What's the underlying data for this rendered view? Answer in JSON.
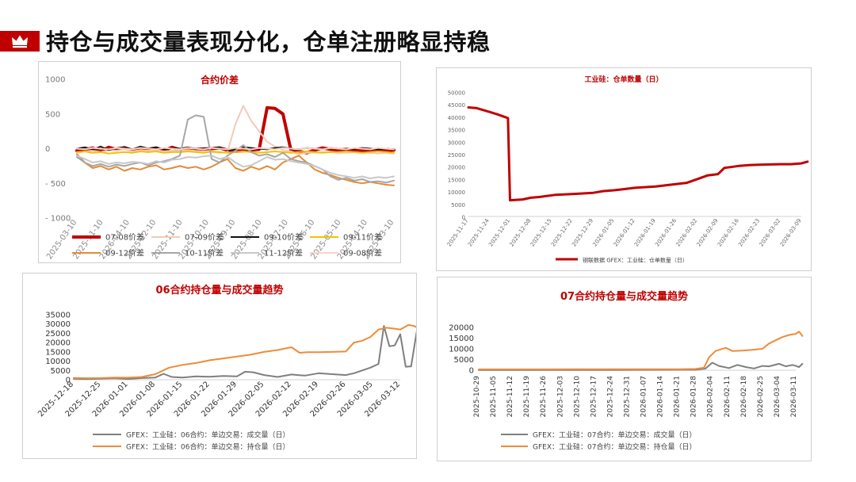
{
  "page": {
    "title": "持仓与成交量表现分化，仓单注册略显持稳",
    "accent_color": "#c00000",
    "icon": "crown-icon"
  },
  "chart_data": [
    {
      "type": "line",
      "title": "合约价差",
      "xlabel": "",
      "ylabel": "",
      "ylim": [
        -1000,
        1000
      ],
      "y_ticks": [
        "1000",
        "500",
        "0",
        "- 500",
        "- 1000"
      ],
      "x_tick_labels": [
        "2025-03-10",
        "2025-11-10",
        "2026-04-10",
        "2025-12-10",
        "2025-11-10",
        "2025-10-10",
        "2025-09-10",
        "2025-08-10",
        "2025-07-10",
        "2025-06-10",
        "2025-05-10",
        "2025-04-10",
        "2025-03-10"
      ],
      "legend_position": "bottom",
      "series": [
        {
          "name": "07-08价差",
          "color": "#c00000",
          "width": 4,
          "values": [
            -30,
            -20,
            10,
            -40,
            20,
            -10,
            15,
            -25,
            5,
            -10,
            10,
            -30,
            20,
            -15,
            5,
            -10,
            -5,
            0,
            10,
            -20,
            -40,
            -30,
            -20,
            -10,
            590,
            580,
            500,
            -20,
            -40,
            -60,
            -20,
            10,
            -10,
            -20,
            -10,
            -20,
            -30,
            -25,
            -20,
            -30,
            -20
          ]
        },
        {
          "name": "07-09价差",
          "color": "#f1cbb8",
          "width": 2,
          "values": [
            -60,
            -40,
            -30,
            -50,
            -20,
            -30,
            -10,
            -40,
            -20,
            -30,
            -20,
            -40,
            -30,
            -30,
            -20,
            -30,
            -40,
            -50,
            -60,
            -50,
            350,
            620,
            400,
            250,
            100,
            30,
            -20,
            -40,
            -80,
            -60,
            -60,
            -50,
            -50,
            -60,
            -60,
            -50,
            -60,
            -60,
            -70,
            -60,
            -70
          ]
        },
        {
          "name": "09-10价差",
          "color": "#111111",
          "width": 2,
          "values": [
            0,
            20,
            -10,
            30,
            -20,
            10,
            20,
            -10,
            30,
            0,
            20,
            -10,
            10,
            0,
            20,
            -10,
            0,
            10,
            20,
            -20,
            -10,
            20,
            10,
            0,
            -10,
            10,
            20,
            0,
            -10,
            10,
            0,
            -10,
            10,
            0,
            -10,
            0,
            10,
            0,
            -10,
            0,
            -10
          ]
        },
        {
          "name": "09-11价差",
          "color": "#f2c200",
          "width": 2,
          "values": [
            -50,
            -40,
            -60,
            -50,
            -70,
            -60,
            -50,
            -60,
            -40,
            -50,
            -40,
            -60,
            -50,
            -50,
            -40,
            -50,
            -60,
            -40,
            -50,
            -60,
            -50,
            -40,
            -50,
            -60,
            -50,
            -40,
            -50,
            -60,
            -50,
            -40,
            -50,
            -60,
            -50,
            -50,
            -40,
            -50,
            -60,
            -50,
            -40,
            -50,
            -60
          ]
        },
        {
          "name": "09-12价差",
          "color": "#e58a3a",
          "width": 2,
          "values": [
            -80,
            -200,
            -280,
            -250,
            -300,
            -260,
            -320,
            -280,
            -300,
            -260,
            -240,
            -300,
            -280,
            -250,
            -280,
            -260,
            -300,
            -260,
            -200,
            -150,
            -280,
            -320,
            -260,
            -300,
            -250,
            -300,
            -200,
            -150,
            -100,
            -200,
            -300,
            -350,
            -380,
            -420,
            -450,
            -480,
            -500,
            -480,
            -500,
            -520,
            -530
          ]
        },
        {
          "name": "10-11价差",
          "color": "#a6a6a6",
          "width": 2,
          "values": [
            -120,
            -200,
            -250,
            -220,
            -260,
            -230,
            -250,
            -220,
            -200,
            -240,
            -200,
            -180,
            -150,
            -100,
            420,
            480,
            460,
            -150,
            -200,
            -100,
            -30,
            50,
            -50,
            -100,
            -80,
            -120,
            -60,
            -150,
            -180,
            -200,
            -250,
            -300,
            -400,
            -450,
            -420,
            -460,
            -440,
            -480,
            -470,
            -490,
            -460
          ]
        },
        {
          "name": "11-12价差",
          "color": "#c8c8c8",
          "width": 2,
          "values": [
            -100,
            -150,
            -200,
            -180,
            -220,
            -200,
            -210,
            -190,
            -200,
            -220,
            -180,
            -200,
            -160,
            -150,
            -120,
            -130,
            -110,
            -100,
            -150,
            -120,
            -200,
            -260,
            -240,
            -180,
            -120,
            -160,
            -150,
            -180,
            -200,
            -220,
            -250,
            -300,
            -350,
            -380,
            -400,
            -420,
            -400,
            -430,
            -410,
            -420,
            -400
          ]
        },
        {
          "name": "09-08价差",
          "color": "#fbd3c7",
          "width": 2,
          "values": [
            0,
            -10,
            10,
            0,
            -10,
            10,
            0,
            -10,
            10,
            0,
            -10,
            10,
            0,
            -10,
            10,
            0,
            -10,
            10,
            0,
            -10,
            10,
            0,
            -10,
            10,
            0,
            -10,
            10,
            0,
            -10,
            10,
            0,
            -10,
            10,
            0,
            -10,
            10,
            0,
            -10,
            10,
            0,
            -10
          ]
        }
      ]
    },
    {
      "type": "line",
      "title": "工业硅：仓单数量（日）",
      "xlabel": "",
      "ylabel": "",
      "ylim": [
        0,
        50000
      ],
      "y_ticks": [
        "50000",
        "45000",
        "40000",
        "35000",
        "30000",
        "25000",
        "20000",
        "15000",
        "10000",
        "5000",
        "0"
      ],
      "x_tick_labels": [
        "2025-11-17",
        "2025-11-24",
        "2025-12-01",
        "2025-12-08",
        "2025-12-15",
        "2025-12-22",
        "2025-12-29",
        "2026-01-05",
        "2026-01-12",
        "2026-01-19",
        "2026-01-26",
        "2026-02-02",
        "2026-02-09",
        "2026-02-16",
        "2026-02-23",
        "2026-03-02",
        "2026-03-09"
      ],
      "legend_position": "bottom",
      "series": [
        {
          "name": "钢联数据 GFEX：工业硅：仓单数量（日）",
          "color": "#c00000",
          "width": 3,
          "x": [
            0,
            0.4,
            1,
            1.4,
            1.9,
            2.0,
            2.6,
            3.0,
            3.4,
            4.2,
            5.0,
            6.0,
            6.5,
            7.0,
            7.5,
            8.0,
            9.0,
            9.8,
            10.5,
            11.0,
            11.5,
            12.0,
            12.3,
            13.0,
            13.5,
            14.0,
            15.0,
            15.5,
            16.0,
            16.3
          ],
          "values": [
            43800,
            43500,
            42000,
            41000,
            39500,
            6500,
            6800,
            7500,
            7800,
            8700,
            9000,
            9500,
            10200,
            10500,
            11000,
            11500,
            12000,
            12800,
            13500,
            15000,
            16500,
            17000,
            19500,
            20300,
            20600,
            20800,
            21000,
            21000,
            21300,
            22000
          ]
        }
      ]
    },
    {
      "type": "line",
      "title": "06合约持仓量与成交量趋势",
      "xlabel": "",
      "ylabel": "",
      "ylim": [
        0,
        35000
      ],
      "y_ticks": [
        "35000",
        "30000",
        "25000",
        "20000",
        "15000",
        "10000",
        "5000",
        "0"
      ],
      "x_tick_labels": [
        "2025-12-18",
        "2025-12-25",
        "2026-01-01",
        "2026-01-08",
        "2026-01-15",
        "2026-01-22",
        "2026-01-29",
        "2026-02-05",
        "2026-02-12",
        "2026-02-19",
        "2026-02-26",
        "2026-03-05",
        "2026-03-12"
      ],
      "legend_position": "bottom",
      "series": [
        {
          "name": "GFEX：工业硅：06合约：单边交易：成交量（日）",
          "color": "#7f7f7f",
          "width": 2,
          "x": [
            0,
            0.5,
            1,
            1.5,
            2,
            2.5,
            3,
            3.3,
            3.6,
            4,
            4.5,
            5,
            5.5,
            6,
            6.3,
            6.6,
            7,
            7.5,
            8,
            8.5,
            9,
            9.5,
            10,
            10.3,
            10.6,
            10.9,
            11.2,
            11.4,
            11.6,
            11.8,
            12,
            12.2,
            12.4,
            12.6
          ],
          "values": [
            500,
            400,
            600,
            800,
            400,
            900,
            1200,
            3200,
            1500,
            1200,
            1800,
            1600,
            2000,
            1800,
            4300,
            4000,
            2500,
            1500,
            2800,
            2200,
            3500,
            3000,
            2500,
            3500,
            5000,
            6500,
            8500,
            29000,
            18000,
            18500,
            24500,
            7000,
            7200,
            25500
          ]
        },
        {
          "name": "GFEX：工业硅：06合约：单边交易：持仓量（日）",
          "color": "#ed8c3a",
          "width": 2,
          "x": [
            0,
            0.5,
            1,
            1.5,
            2,
            2.5,
            3,
            3.5,
            4,
            4.5,
            5,
            5.5,
            6,
            6.5,
            7,
            7.5,
            8,
            8.3,
            8.6,
            9,
            9.5,
            10,
            10.3,
            10.6,
            10.9,
            11.2,
            11.5,
            11.8,
            12,
            12.3,
            12.5,
            12.7
          ],
          "values": [
            1000,
            800,
            900,
            1200,
            1100,
            1500,
            3000,
            6500,
            8000,
            9000,
            10500,
            11500,
            12500,
            13500,
            15000,
            16000,
            17500,
            14500,
            14800,
            14800,
            15000,
            15200,
            20000,
            21000,
            23000,
            27000,
            28000,
            27500,
            27000,
            29500,
            29000,
            27500
          ]
        }
      ]
    },
    {
      "type": "line",
      "title": "07合约持仓量与成交量趋势",
      "xlabel": "",
      "ylabel": "",
      "ylim": [
        0,
        20000
      ],
      "y_ticks": [
        "20000",
        "15000",
        "10000",
        "5000",
        "0"
      ],
      "x_tick_labels": [
        "2025-10-29",
        "2025-11-05",
        "2025-11-12",
        "2025-11-19",
        "2025-11-26",
        "2025-12-03",
        "2025-12-10",
        "2025-12-17",
        "2025-12-24",
        "2025-12-31",
        "2026-01-07",
        "2026-01-14",
        "2026-01-21",
        "2026-01-28",
        "2026-02-04",
        "2026-02-11",
        "2026-02-18",
        "2026-02-25",
        "2026-03-04",
        "2026-03-11"
      ],
      "legend_position": "bottom",
      "series": [
        {
          "name": "GFEX：工业硅：07合约：单边交易：成交量（日）",
          "color": "#7f7f7f",
          "width": 2,
          "x": [
            0,
            2,
            4,
            6,
            8,
            10,
            12,
            13,
            13.6,
            14,
            14.4,
            15,
            15.5,
            16,
            16.5,
            17,
            17.4,
            18,
            18.4,
            18.8,
            19,
            19.2,
            19.4
          ],
          "values": [
            100,
            80,
            100,
            120,
            90,
            150,
            200,
            200,
            800,
            3500,
            2000,
            1000,
            2500,
            1500,
            800,
            2000,
            1800,
            3000,
            1800,
            2500,
            2000,
            1500,
            3000
          ]
        },
        {
          "name": "GFEX：工业硅：07合约：单边交易：持仓量（日）",
          "color": "#ed8c3a",
          "width": 2,
          "x": [
            0,
            2,
            4,
            6,
            8,
            10,
            12,
            13,
            13.5,
            13.8,
            14.2,
            14.8,
            15.2,
            15.8,
            16.4,
            17,
            17.4,
            17.8,
            18.2,
            18.6,
            19,
            19.2,
            19.4
          ],
          "values": [
            400,
            400,
            420,
            430,
            450,
            460,
            480,
            600,
            1200,
            6000,
            9000,
            10500,
            9000,
            9200,
            9500,
            10000,
            12500,
            14000,
            15500,
            16500,
            17000,
            18000,
            16000
          ]
        }
      ]
    }
  ]
}
